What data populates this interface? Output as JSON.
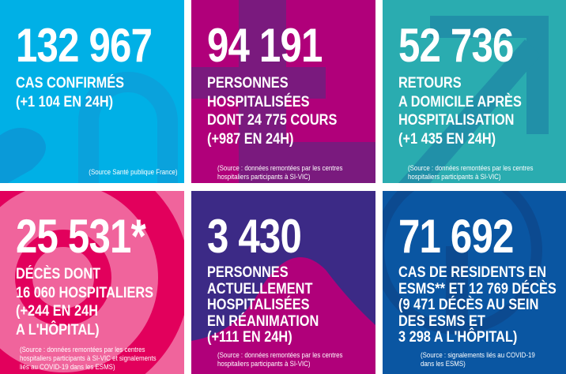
{
  "colors": {
    "cases": "#00b0e6",
    "hosp": "#b0007a",
    "home": "#2aacb0",
    "deaths": "#f0649c",
    "icu": "#3c2a86",
    "esms": "#0a56a2"
  },
  "tiles": [
    {
      "number": "132 967",
      "lines": [
        "CAS CONFIRMÉS",
        "(+1 104 EN 24H)"
      ],
      "source": [
        "(Source Santé publique France)"
      ]
    },
    {
      "number": "94 191",
      "lines": [
        "PERSONNES",
        "HOSPITALISÉES",
        "DONT 24 775 COURS",
        "(+987 EN 24H)"
      ],
      "source": [
        "(Source : données remontées par les centres",
        "hospitaliers participants à SI-VIC)"
      ]
    },
    {
      "number": "52 736",
      "lines": [
        "RETOURS",
        "A DOMICILE APRÈS",
        "HOSPITALISATION",
        "(+1 435 EN 24H)"
      ],
      "source": [
        "(Source : données remontées par les centres",
        "hospitaliers participants à SI-VIC)"
      ]
    },
    {
      "number": "25 531*",
      "lines": [
        "DÉCÈS DONT",
        "16 060 HOSPITALIERS",
        "(+244 EN 24H",
        "A L'HÔPITAL)"
      ],
      "source": [
        "(Source : données remontées par les centres",
        "hospitaliers participants à SI-VIC et signalements",
        "liés au COVID-19 dans les ESMS)"
      ]
    },
    {
      "number": "3 430",
      "lines": [
        "PERSONNES",
        "ACTUELLEMENT",
        "HOSPITALISÉES",
        "EN RÉANIMATION",
        "(+111 EN 24H)"
      ],
      "source": [
        "(Source : données remontées par les centres",
        "hospitaliers participants à SI-VIC)"
      ]
    },
    {
      "number": "71 692",
      "lines": [
        "CAS DE RESIDENTS EN",
        "ESMS** ET 12 769 DÉCÈS",
        "(9 471 DÉCÈS AU SEIN",
        "DES ESMS ET",
        "3 298 A L'HÔPITAL)"
      ],
      "source": [
        "(Source : signalements liés au COVID-19",
        "dans les ESMS)"
      ]
    }
  ]
}
